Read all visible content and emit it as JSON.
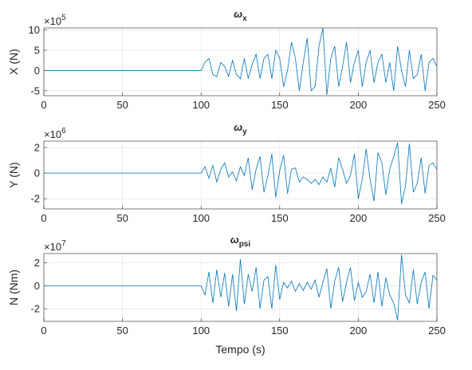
{
  "chart_data": [
    {
      "type": "line",
      "title": "ω",
      "title_sub": "x",
      "ylabel": "X (N)",
      "y_multiplier": "×10",
      "y_multiplier_power": "5",
      "x": [
        0,
        100,
        102.5,
        105,
        107.5,
        110,
        112.5,
        115,
        117.5,
        120,
        122.5,
        125,
        127.5,
        130,
        132.5,
        135,
        137.5,
        140,
        142.5,
        145,
        147.5,
        150,
        152.5,
        155,
        157.5,
        160,
        162.5,
        165,
        167.5,
        170,
        172.5,
        175,
        177.5,
        180,
        182.5,
        185,
        187.5,
        190,
        192.5,
        195,
        197.5,
        200,
        202.5,
        205,
        207.5,
        210,
        212.5,
        215,
        217.5,
        220,
        222.5,
        225,
        227.5,
        230,
        232.5,
        235,
        237.5,
        240,
        242.5,
        245,
        247.5,
        250
      ],
      "values": [
        0,
        0,
        2,
        3,
        -1,
        -1.5,
        2,
        1,
        -1.5,
        2.5,
        -1,
        -2,
        3,
        -2,
        1.5,
        4,
        -2,
        3,
        4,
        -2,
        5,
        3,
        -4,
        0,
        7,
        3,
        -5,
        2,
        8,
        -5,
        -4,
        6,
        10.5,
        -6,
        3,
        6,
        -4,
        1,
        7,
        -3,
        2,
        5,
        -4,
        2,
        5,
        -3,
        2,
        4,
        -3,
        2,
        -5,
        6,
        0,
        -4,
        5,
        -2,
        -1,
        4,
        -5,
        2,
        3,
        1
      ],
      "color": "#0072bd",
      "xlim": [
        0,
        250
      ],
      "xticks": [
        0,
        50,
        100,
        150,
        200,
        250
      ],
      "ylim": [
        -6.2,
        10.5
      ],
      "yticks": [
        -5,
        0,
        5,
        10
      ],
      "grid": true
    },
    {
      "type": "line",
      "title": "ω",
      "title_sub": "y",
      "ylabel": "Y (N)",
      "y_multiplier": "×10",
      "y_multiplier_power": "6",
      "x": [
        0,
        100,
        102.5,
        105,
        107.5,
        110,
        112.5,
        115,
        117.5,
        120,
        122.5,
        125,
        127.5,
        130,
        132.5,
        135,
        137.5,
        140,
        142.5,
        145,
        147.5,
        150,
        152.5,
        155,
        157.5,
        160,
        162.5,
        165,
        167.5,
        170,
        172.5,
        175,
        177.5,
        180,
        182.5,
        185,
        187.5,
        190,
        192.5,
        195,
        197.5,
        200,
        202.5,
        205,
        207.5,
        210,
        212.5,
        215,
        217.5,
        220,
        222.5,
        225,
        227.5,
        230,
        232.5,
        235,
        237.5,
        240,
        242.5,
        245,
        247.5,
        250
      ],
      "values": [
        0,
        0,
        0.5,
        -0.4,
        0.6,
        -0.7,
        0.3,
        0.8,
        -0.3,
        0.1,
        -0.6,
        0.5,
        -0.2,
        1.2,
        -1.3,
        0.3,
        1.3,
        -1.5,
        -0.2,
        1.5,
        -1.9,
        0.2,
        1.4,
        -1.6,
        0.3,
        0.4,
        -0.7,
        -0.3,
        -0.5,
        -0.8,
        -0.5,
        -0.9,
        -0.3,
        -0.7,
        0.4,
        -1.1,
        1.2,
        0.3,
        -0.8,
        -0.2,
        1.5,
        -2.0,
        -0.5,
        1.9,
        -0.5,
        -2.2,
        1.6,
        0.8,
        -1.7,
        0.3,
        1.3,
        2.4,
        -2.4,
        -1.0,
        2.3,
        -1.5,
        -0.8,
        1.2,
        -1.6,
        0.6,
        0.8,
        0.3
      ],
      "color": "#0072bd",
      "xlim": [
        0,
        250
      ],
      "xticks": [
        0,
        50,
        100,
        150,
        200,
        250
      ],
      "ylim": [
        -2.8,
        2.5
      ],
      "yticks": [
        -2,
        0,
        2
      ],
      "grid": true
    },
    {
      "type": "line",
      "title": "ω",
      "title_sub": "psi",
      "ylabel": "N (Nm)",
      "xlabel": "Tempo (s)",
      "y_multiplier": "×10",
      "y_multiplier_power": "7",
      "x": [
        0,
        100,
        102.5,
        105,
        107.5,
        110,
        112.5,
        115,
        117.5,
        120,
        122.5,
        125,
        127.5,
        130,
        132.5,
        135,
        137.5,
        140,
        142.5,
        145,
        147.5,
        150,
        152.5,
        155,
        157.5,
        160,
        162.5,
        165,
        167.5,
        170,
        172.5,
        175,
        177.5,
        180,
        182.5,
        185,
        187.5,
        190,
        192.5,
        195,
        197.5,
        200,
        202.5,
        205,
        207.5,
        210,
        212.5,
        215,
        217.5,
        220,
        222.5,
        225,
        227.5,
        230,
        232.5,
        235,
        237.5,
        240,
        242.5,
        245,
        247.5,
        250
      ],
      "values": [
        0,
        0,
        -0.8,
        1.2,
        -1.5,
        1.4,
        -1.0,
        1.1,
        -1.8,
        1.0,
        -2.2,
        2.3,
        -1.6,
        1.0,
        -0.5,
        1.6,
        -2.0,
        0.5,
        0.8,
        -2.0,
        1.8,
        -1.2,
        0.3,
        -0.2,
        0.4,
        -0.5,
        0.2,
        -0.4,
        0.3,
        -0.3,
        0.5,
        -1.0,
        0.3,
        1.5,
        -2.0,
        0.4,
        1.6,
        -1.4,
        0.3,
        1.6,
        -1.3,
        0.3,
        -1.0,
        -0.5,
        1.0,
        -1.5,
        1.2,
        -1.8,
        0.7,
        -0.8,
        -1.5,
        -3.0,
        2.7,
        -0.8,
        -1.5,
        1.4,
        -1.6,
        0.3,
        1.2,
        -2.0,
        0.9,
        0.5
      ],
      "color": "#0072bd",
      "xlim": [
        0,
        250
      ],
      "xticks": [
        0,
        50,
        100,
        150,
        200,
        250
      ],
      "ylim": [
        -3.1,
        2.8
      ],
      "yticks": [
        -2,
        0,
        2
      ],
      "grid": true
    }
  ]
}
